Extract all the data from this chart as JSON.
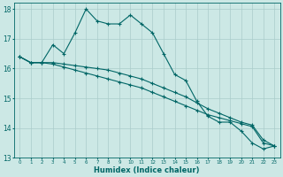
{
  "title": "",
  "xlabel": "Humidex (Indice chaleur)",
  "ylabel": "",
  "bg_color": "#cce8e5",
  "grid_color": "#aaccca",
  "line_color": "#006666",
  "xlim": [
    -0.5,
    23.5
  ],
  "ylim": [
    13.0,
    18.2
  ],
  "yticks": [
    13,
    14,
    15,
    16,
    17,
    18
  ],
  "xticks": [
    0,
    1,
    2,
    3,
    4,
    5,
    6,
    7,
    8,
    9,
    10,
    11,
    12,
    13,
    14,
    15,
    16,
    17,
    18,
    19,
    20,
    21,
    22,
    23
  ],
  "line1": [
    16.4,
    16.2,
    16.2,
    16.8,
    16.5,
    17.2,
    18.0,
    17.6,
    17.5,
    17.5,
    17.8,
    17.5,
    17.2,
    16.5,
    15.8,
    15.6,
    14.9,
    14.4,
    14.2,
    14.2,
    13.9,
    13.5,
    13.3,
    13.4
  ],
  "line2": [
    16.4,
    16.2,
    16.2,
    16.2,
    16.15,
    16.1,
    16.05,
    16.0,
    15.95,
    15.85,
    15.75,
    15.65,
    15.5,
    15.35,
    15.2,
    15.05,
    14.85,
    14.65,
    14.5,
    14.35,
    14.2,
    14.1,
    13.6,
    13.4
  ],
  "line3": [
    16.4,
    16.2,
    16.2,
    16.15,
    16.05,
    15.95,
    15.85,
    15.75,
    15.65,
    15.55,
    15.45,
    15.35,
    15.2,
    15.05,
    14.9,
    14.75,
    14.6,
    14.45,
    14.35,
    14.25,
    14.15,
    14.05,
    13.5,
    13.4
  ]
}
